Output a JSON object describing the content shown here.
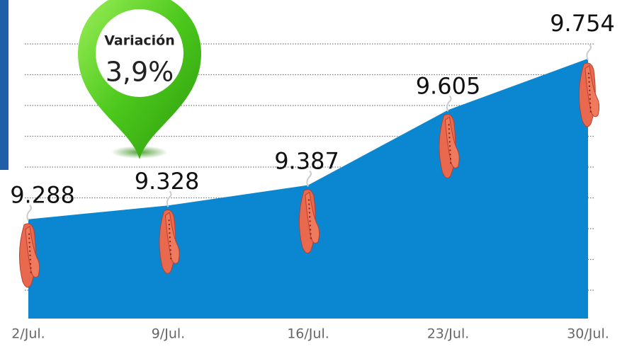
{
  "chart_data": {
    "type": "area",
    "categories": [
      "2/Jul.",
      "9/Jul.",
      "16/Jul.",
      "23/Jul.",
      "30/Jul."
    ],
    "values": [
      9.288,
      9.328,
      9.387,
      9.605,
      9.754
    ],
    "color": "#0a87d0",
    "ylim": [
      9.0,
      9.85
    ],
    "grid": true,
    "annotation": {
      "title": "Variación",
      "value": "3,9%"
    }
  }
}
